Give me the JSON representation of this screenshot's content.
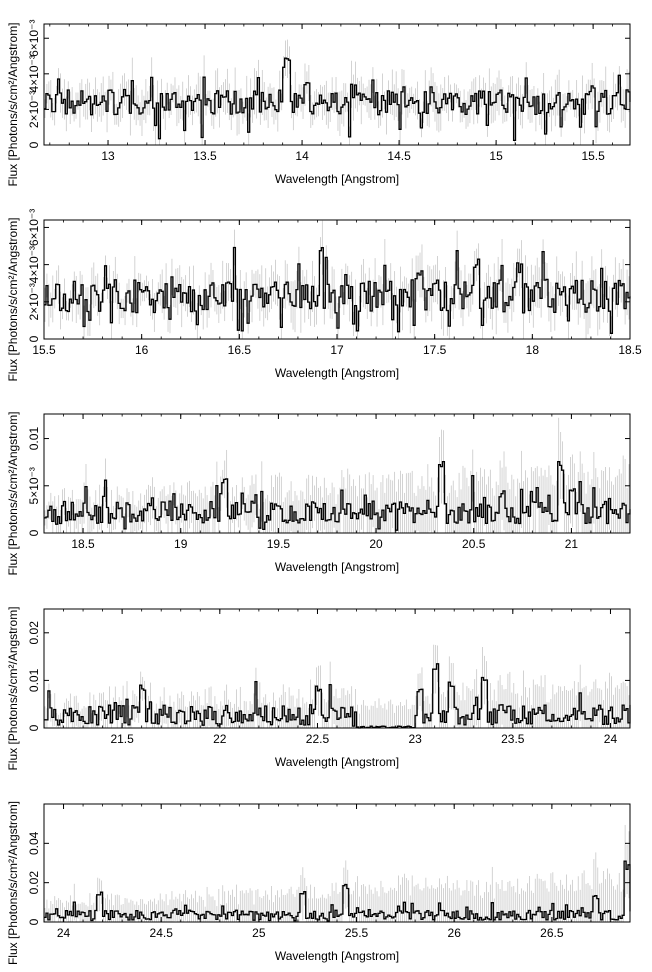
{
  "chart_data": [
    {
      "type": "line",
      "xlabel": "Wavelength [Angstrom]",
      "ylabel": "Flux [Photons/s/cm²/Angstrom]",
      "xlim": [
        12.67,
        15.69
      ],
      "ylim": [
        0,
        0.0068
      ],
      "x_ticks": [
        {
          "value": 13,
          "label": "13"
        },
        {
          "value": 13.5,
          "label": "13.5"
        },
        {
          "value": 14,
          "label": "14"
        },
        {
          "value": 14.5,
          "label": "14.5"
        },
        {
          "value": 15,
          "label": "15"
        },
        {
          "value": 15.5,
          "label": "15.5"
        }
      ],
      "y_ticks": [
        {
          "value": 0,
          "label": "0"
        },
        {
          "value": 0.002,
          "label": "2×10⁻³"
        },
        {
          "value": 0.004,
          "label": "4×10⁻³"
        },
        {
          "value": 0.006,
          "label": "6×10⁻³"
        }
      ],
      "bin_width": 0.01,
      "baseline": 0.0024,
      "noise": 0.0007,
      "err_base": 0.0009,
      "err_slope": 0,
      "peaks": [
        {
          "x": 13.92,
          "y": 0.0049
        },
        {
          "x": 14.02,
          "y": 0.0036
        },
        {
          "x": 15.01,
          "y": 0.0032
        },
        {
          "x": 15.49,
          "y": 0.0035
        }
      ],
      "seed": 11
    },
    {
      "type": "line",
      "xlabel": "Wavelength [Angstrom]",
      "ylabel": "Flux [Photons/s/cm²/Angstrom]",
      "xlim": [
        15.5,
        18.5
      ],
      "ylim": [
        0,
        0.0064
      ],
      "x_ticks": [
        {
          "value": 15.5,
          "label": "15.5"
        },
        {
          "value": 16,
          "label": "16"
        },
        {
          "value": 16.5,
          "label": "16.5"
        },
        {
          "value": 17,
          "label": "17"
        },
        {
          "value": 17.5,
          "label": "17.5"
        },
        {
          "value": 18,
          "label": "18"
        },
        {
          "value": 18.5,
          "label": "18.5"
        }
      ],
      "y_ticks": [
        {
          "value": 0,
          "label": "0"
        },
        {
          "value": 0.002,
          "label": "2×10⁻³"
        },
        {
          "value": 0.004,
          "label": "4×10⁻³"
        },
        {
          "value": 0.006,
          "label": "6×10⁻³"
        }
      ],
      "bin_width": 0.01,
      "baseline": 0.0023,
      "noise": 0.0009,
      "err_base": 0.0009,
      "err_slope": 0.0002,
      "peaks": [
        {
          "x": 17.42,
          "y": 0.0038
        },
        {
          "x": 17.71,
          "y": 0.0041
        },
        {
          "x": 17.93,
          "y": 0.0041
        },
        {
          "x": 18.06,
          "y": 0.0033
        },
        {
          "x": 17.83,
          "y": 0.0032
        }
      ],
      "seed": 23
    },
    {
      "type": "line",
      "xlabel": "Wavelength [Angstrom]",
      "ylabel": "Flux [Photons/s/cm²/Angstrom]",
      "xlim": [
        18.3,
        21.3
      ],
      "ylim": [
        0,
        0.0126
      ],
      "x_ticks": [
        {
          "value": 18.5,
          "label": "18.5"
        },
        {
          "value": 19,
          "label": "19"
        },
        {
          "value": 19.5,
          "label": "19.5"
        },
        {
          "value": 20,
          "label": "20"
        },
        {
          "value": 20.5,
          "label": "20.5"
        },
        {
          "value": 21,
          "label": "21"
        }
      ],
      "y_ticks": [
        {
          "value": 0,
          "label": "0"
        },
        {
          "value": 0.005,
          "label": "5×10⁻³"
        },
        {
          "value": 0.01,
          "label": "0.01"
        }
      ],
      "bin_width": 0.01,
      "baseline": 0.0022,
      "noise": 0.0012,
      "err_base": 0.0015,
      "err_slope": 0.0025,
      "peaks": [
        {
          "x": 19.22,
          "y": 0.0058
        },
        {
          "x": 20.33,
          "y": 0.0078
        },
        {
          "x": 20.94,
          "y": 0.0078
        },
        {
          "x": 21.0,
          "y": 0.0048
        },
        {
          "x": 20.64,
          "y": 0.0045
        }
      ],
      "seed": 37
    },
    {
      "type": "line",
      "xlabel": "Wavelength [Angstrom]",
      "ylabel": "Flux [Photons/s/cm²/Angstrom]",
      "xlim": [
        21.1,
        24.1
      ],
      "ylim": [
        0,
        0.025
      ],
      "x_ticks": [
        {
          "value": 21.5,
          "label": "21.5"
        },
        {
          "value": 22,
          "label": "22"
        },
        {
          "value": 22.5,
          "label": "22.5"
        },
        {
          "value": 23,
          "label": "23"
        },
        {
          "value": 23.5,
          "label": "23.5"
        },
        {
          "value": 24,
          "label": "24"
        }
      ],
      "y_ticks": [
        {
          "value": 0,
          "label": "0"
        },
        {
          "value": 0.01,
          "label": "0.01"
        },
        {
          "value": 0.02,
          "label": "0.02"
        }
      ],
      "bin_width": 0.01,
      "baseline": 0.0028,
      "noise": 0.0022,
      "err_base": 0.0025,
      "err_slope": 0.0035,
      "peaks": [
        {
          "x": 23.1,
          "y": 0.0135
        },
        {
          "x": 23.18,
          "y": 0.01
        },
        {
          "x": 23.35,
          "y": 0.011
        },
        {
          "x": 22.5,
          "y": 0.009
        },
        {
          "x": 21.6,
          "y": 0.009
        },
        {
          "x": 23.02,
          "y": 0.0088
        }
      ],
      "gap": [
        22.7,
        23.0
      ],
      "seed": 53
    },
    {
      "type": "line",
      "xlabel": "Wavelength [Angstrom]",
      "ylabel": "Flux [Photons/s/cm²/Angstrom]",
      "xlim": [
        23.9,
        26.9
      ],
      "ylim": [
        0,
        0.06
      ],
      "x_ticks": [
        {
          "value": 24,
          "label": "24"
        },
        {
          "value": 24.5,
          "label": "24.5"
        },
        {
          "value": 25,
          "label": "25"
        },
        {
          "value": 25.5,
          "label": "25.5"
        },
        {
          "value": 26,
          "label": "26"
        },
        {
          "value": 26.5,
          "label": "26.5"
        }
      ],
      "y_ticks": [
        {
          "value": 0,
          "label": "0"
        },
        {
          "value": 0.02,
          "label": "0.02"
        },
        {
          "value": 0.04,
          "label": "0.04"
        }
      ],
      "bin_width": 0.01,
      "baseline": 0.0035,
      "noise": 0.0025,
      "err_base": 0.006,
      "err_slope": 0.012,
      "peaks": [
        {
          "x": 24.18,
          "y": 0.016
        },
        {
          "x": 25.22,
          "y": 0.016
        },
        {
          "x": 25.44,
          "y": 0.02
        },
        {
          "x": 26.88,
          "y": 0.031
        },
        {
          "x": 26.72,
          "y": 0.014
        }
      ],
      "seed": 71
    }
  ]
}
